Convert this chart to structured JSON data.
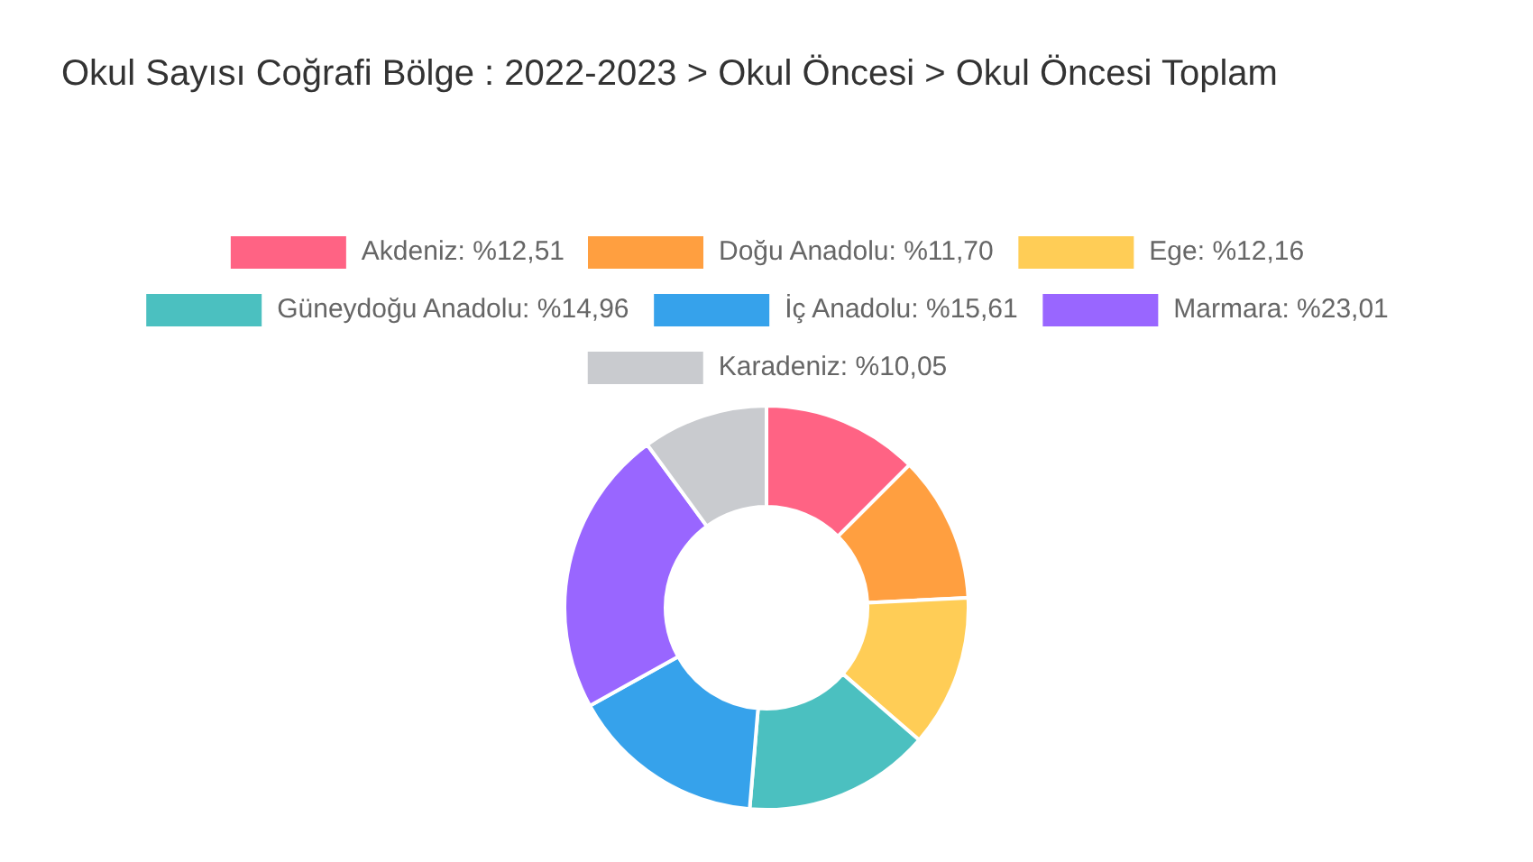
{
  "chart_data": {
    "type": "donut",
    "title": "Okul Sayısı Coğrafi Bölge : 2022-2023 > Okul Öncesi > Okul Öncesi Toplam",
    "categories": [
      "Akdeniz: %12,51",
      "Doğu Anadolu: %11,70",
      "Ege: %12,16",
      "Güneydoğu Anadolu: %14,96",
      "İç Anadolu: %15,61",
      "Marmara: %23,01",
      "Karadeniz: %10,05"
    ],
    "values": [
      12.51,
      11.7,
      12.16,
      14.96,
      15.61,
      23.01,
      10.05
    ],
    "colors": [
      "#ff6384",
      "#ff9f40",
      "#ffcd56",
      "#4bc0c0",
      "#36a2eb",
      "#9966ff",
      "#c9cbcf"
    ],
    "legend": "top"
  }
}
